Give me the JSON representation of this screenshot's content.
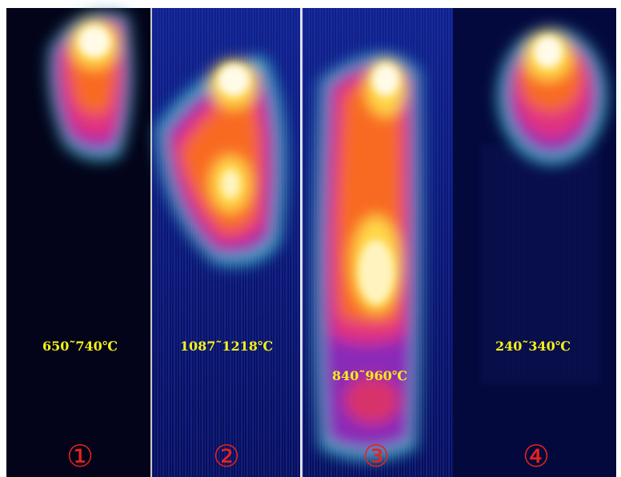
{
  "panels": [
    {
      "temperature": "650˜740℃",
      "number": "①"
    },
    {
      "temperature": "1087˜1218℃",
      "number": "②"
    },
    {
      "temperature": "840˜960℃",
      "number": "③"
    },
    {
      "temperature": "240˜340℃",
      "number": "④"
    }
  ]
}
